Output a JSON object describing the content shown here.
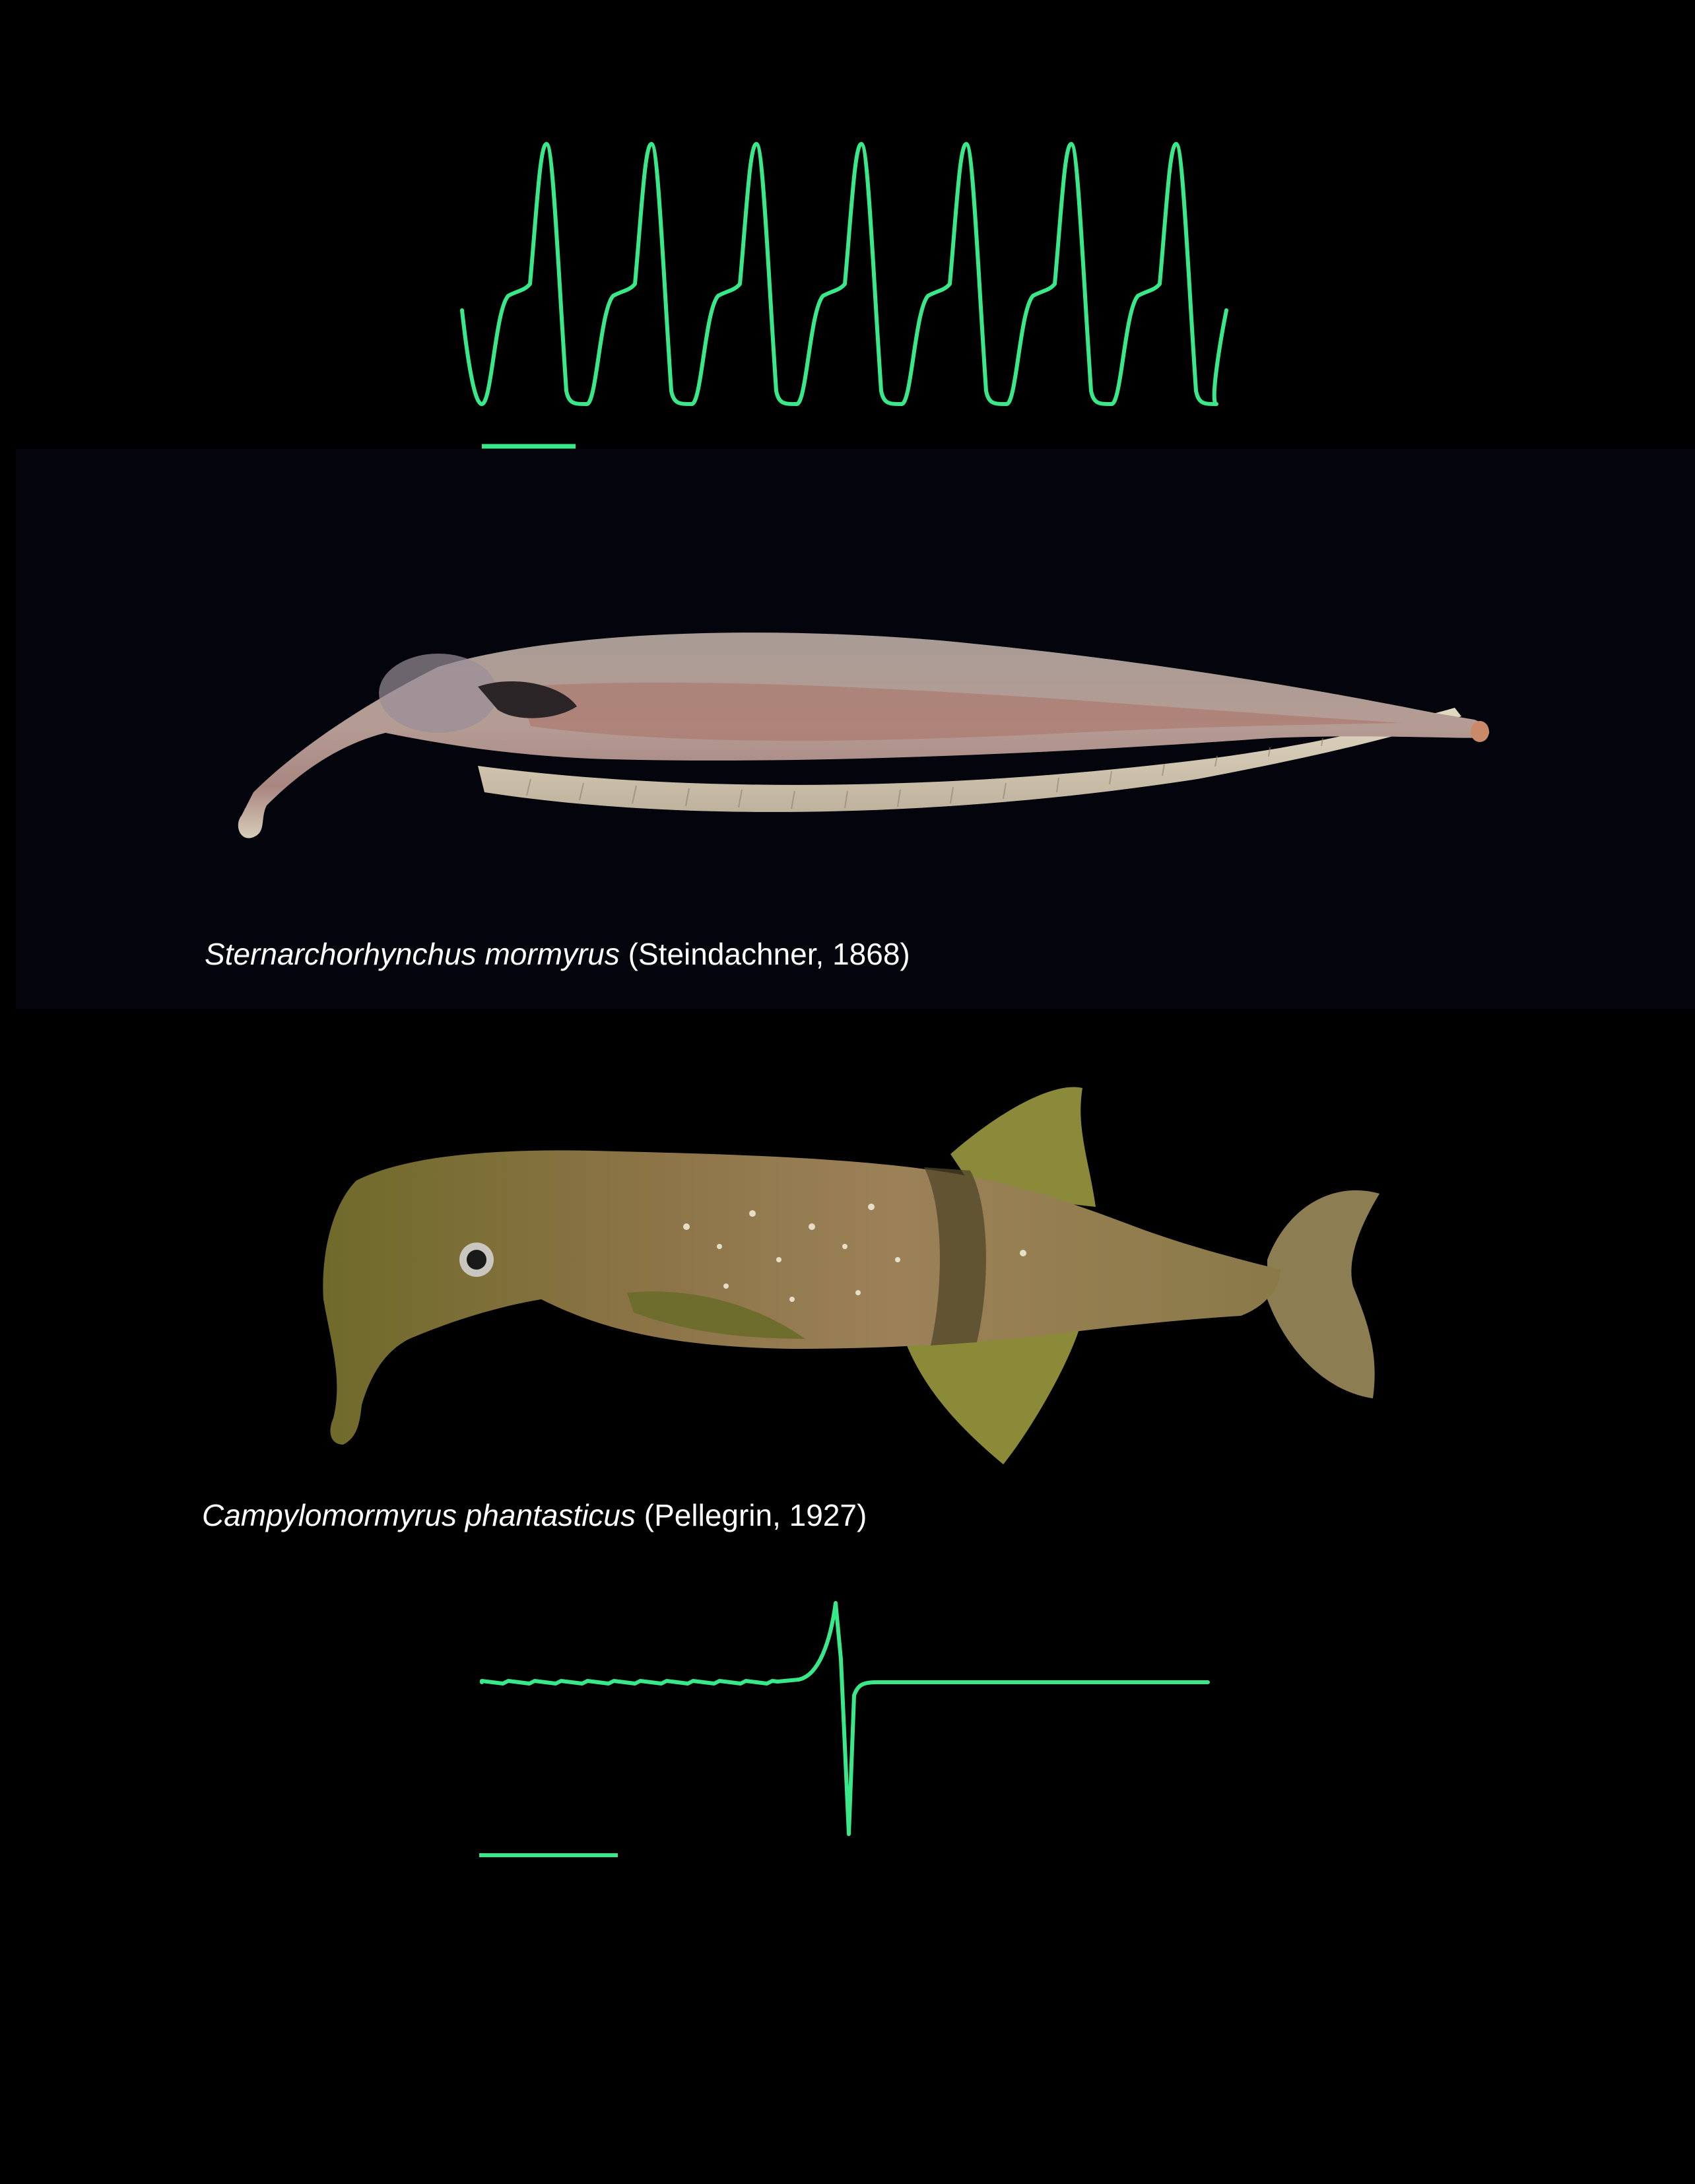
{
  "colors": {
    "trace": "#39e889",
    "background": "#000000",
    "band": "#03040c",
    "caption_text": "#ffffff"
  },
  "top_figure": {
    "description_role": "wave-type electric organ discharge trace",
    "cycles": 7
  },
  "species_1": {
    "genus_species": "Sternarchorhynchus mormyrus",
    "authority": "(Steindachner, 1868)"
  },
  "species_2": {
    "genus_species": "Campylomormyrus phantasticus",
    "authority": "(Pellegrin, 1927)"
  },
  "bottom_figure": {
    "description_role": "pulse-type electric organ discharge trace"
  }
}
